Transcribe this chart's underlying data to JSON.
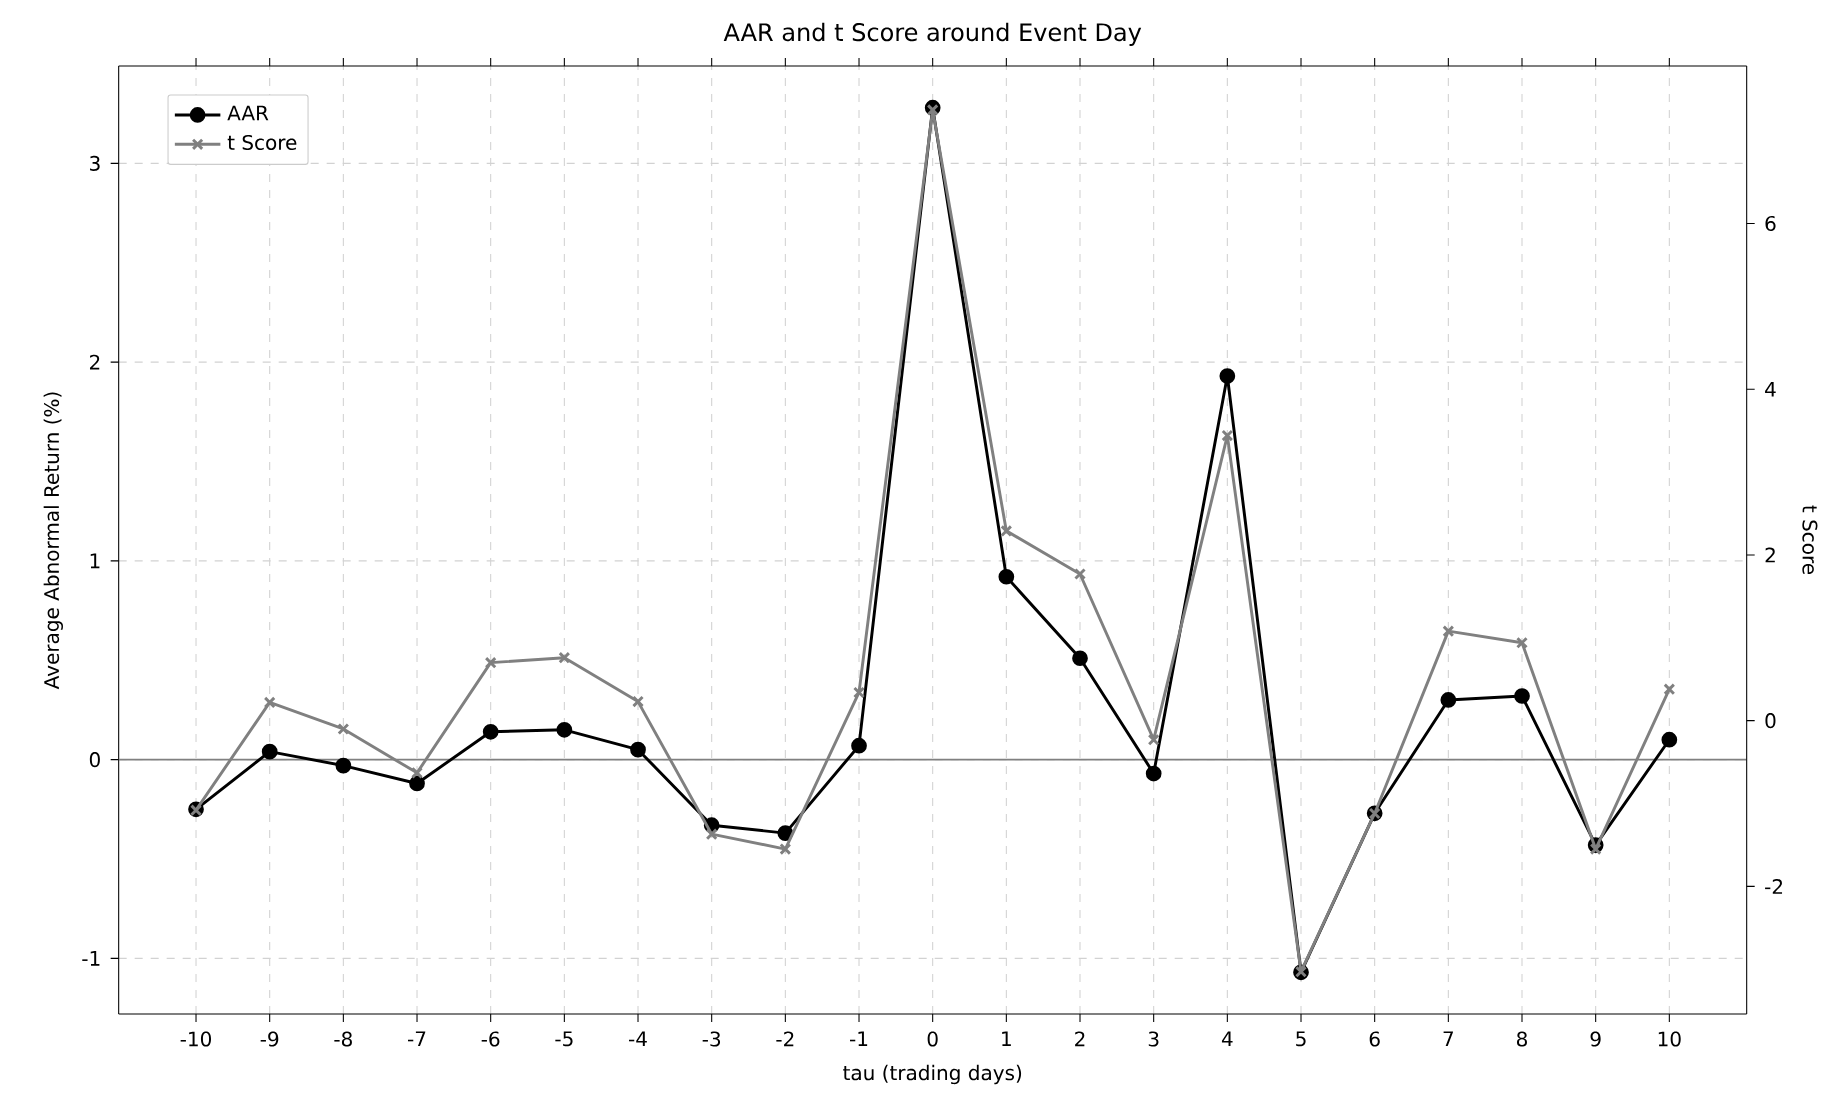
{
  "chart_data": {
    "type": "line",
    "title": "AAR and t Score around Event Day",
    "xlabel": "tau (trading days)",
    "ylabel": "Average Abnormal Return (%)",
    "y2label": "t Score",
    "x": [
      -10,
      -9,
      -8,
      -7,
      -6,
      -5,
      -4,
      -3,
      -2,
      -1,
      0,
      1,
      2,
      3,
      4,
      5,
      6,
      7,
      8,
      9,
      10
    ],
    "series": [
      {
        "name": "AAR",
        "color": "#000000",
        "marker": "circle",
        "values": [
          -0.25,
          0.04,
          -0.03,
          -0.12,
          0.14,
          0.15,
          0.05,
          -0.33,
          -0.37,
          0.07,
          3.28,
          0.92,
          0.51,
          -0.07,
          1.93,
          -1.07,
          -0.27,
          0.3,
          0.32,
          -0.43,
          0.1
        ]
      },
      {
        "name": "t Score",
        "color": "#808080",
        "marker": "cross",
        "axis": "y2",
        "values": [
          -1.08,
          0.22,
          -0.1,
          -0.63,
          0.7,
          0.76,
          0.23,
          -1.37,
          -1.55,
          0.34,
          7.37,
          2.29,
          1.77,
          -0.23,
          3.44,
          -3.03,
          -1.12,
          1.08,
          0.94,
          -1.55,
          0.38
        ]
      }
    ],
    "xlim": [
      -11.05,
      11.05
    ],
    "xticks": [
      -10,
      -9,
      -8,
      -7,
      -6,
      -5,
      -4,
      -3,
      -2,
      -1,
      0,
      1,
      2,
      3,
      4,
      5,
      6,
      7,
      8,
      9,
      10
    ],
    "ylim": [
      -1.28,
      3.49
    ],
    "yticks": [
      -1,
      0,
      1,
      2,
      3
    ],
    "y2lim": [
      -3.54,
      7.9
    ],
    "y2ticks": [
      -2,
      0,
      2,
      4,
      6
    ],
    "ref_lines": [
      {
        "axis": "y",
        "value": 0,
        "color": "#808080"
      }
    ],
    "grid": true,
    "legend": "top left",
    "line_style": "solid"
  }
}
